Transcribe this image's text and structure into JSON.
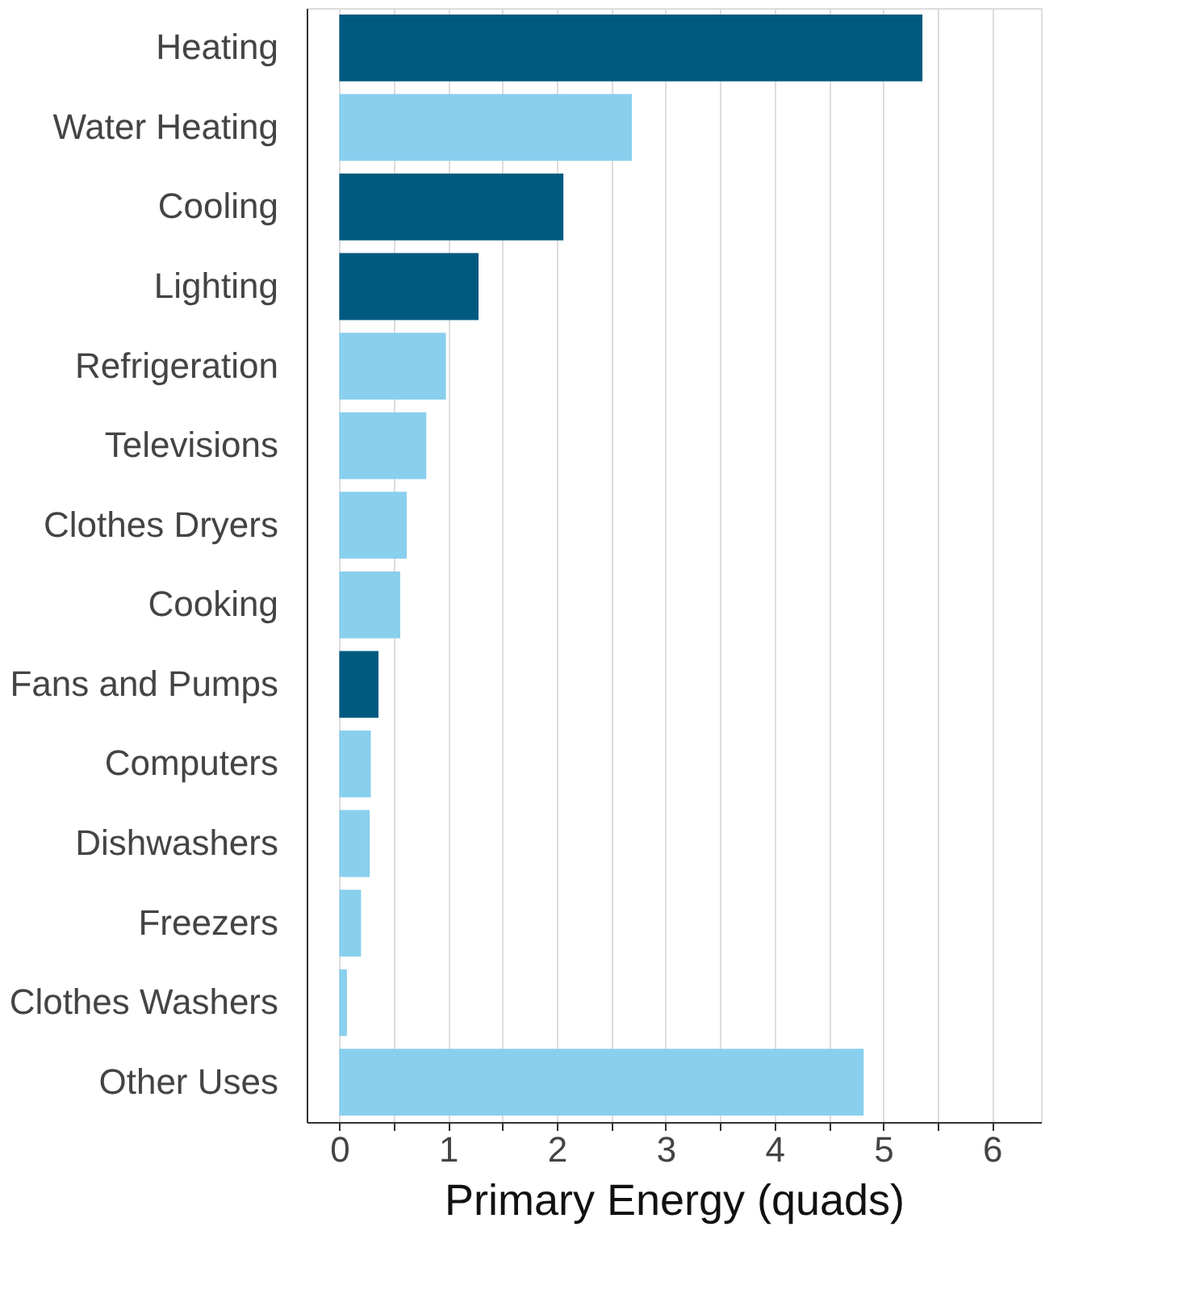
{
  "chart_data": {
    "type": "bar",
    "orientation": "horizontal",
    "xlabel": "Primary Energy (quads)",
    "categories": [
      "Heating",
      "Water Heating",
      "Cooling",
      "Lighting",
      "Refrigeration",
      "Televisions",
      "Clothes Dryers",
      "Cooking",
      "Fans and Pumps",
      "Computers",
      "Dishwashers",
      "Freezers",
      "Clothes Washers",
      "Other Uses"
    ],
    "values": [
      5.36,
      2.69,
      2.06,
      1.28,
      0.98,
      0.8,
      0.62,
      0.56,
      0.36,
      0.29,
      0.28,
      0.2,
      0.07,
      4.82
    ],
    "colors": [
      "#005a80",
      "#89cfee",
      "#005a80",
      "#005a80",
      "#89cfee",
      "#89cfee",
      "#89cfee",
      "#89cfee",
      "#005a80",
      "#89cfee",
      "#89cfee",
      "#89cfee",
      "#89cfee",
      "#89cfee"
    ],
    "xlim": [
      -0.3,
      6.45
    ],
    "xticks": [
      0,
      {
        "value": 0.5,
        "label": null
      },
      1,
      {
        "value": 1.5,
        "label": null
      },
      2,
      {
        "value": 2.5,
        "label": null
      },
      3,
      {
        "value": 3.5,
        "label": null
      },
      4,
      {
        "value": 4.5,
        "label": null
      },
      5,
      {
        "value": 5.5,
        "label": null
      },
      6
    ],
    "grid": "x"
  }
}
